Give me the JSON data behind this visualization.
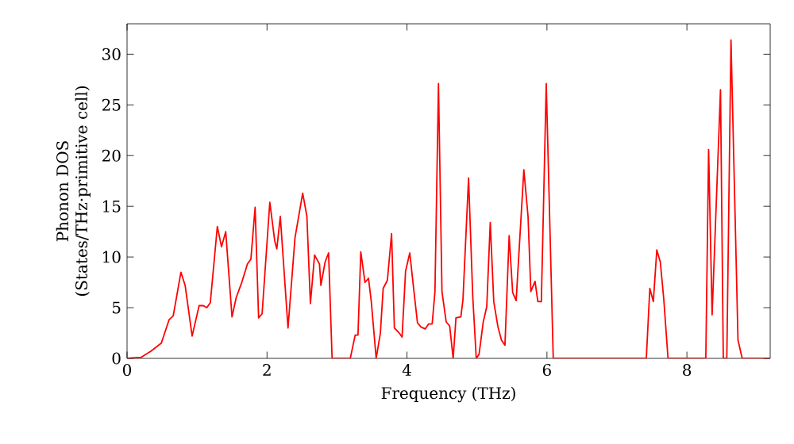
{
  "chart_data": {
    "type": "line",
    "xlabel": "Frequency (THz)",
    "ylabel": "Phonon DOS (States/THz·primitive cell)",
    "xlim": [
      0,
      9.19
    ],
    "ylim": [
      0,
      33
    ],
    "xticks": [
      0,
      2,
      4,
      6,
      8
    ],
    "yticks": [
      0,
      5,
      10,
      15,
      20,
      25,
      30
    ],
    "grid": false,
    "marker": "none",
    "line_style": "solid",
    "series": [
      {
        "color": "#ff0000",
        "x": [
          0,
          0.2,
          0.34,
          0.49,
          0.6,
          0.66,
          0.77,
          0.83,
          0.93,
          1.03,
          1.09,
          1.14,
          1.19,
          1.29,
          1.35,
          1.41,
          1.5,
          1.56,
          1.64,
          1.72,
          1.77,
          1.83,
          1.88,
          1.93,
          2.04,
          2.11,
          2.14,
          2.19,
          2.3,
          2.4,
          2.51,
          2.57,
          2.62,
          2.68,
          2.75,
          2.77,
          2.83,
          2.88,
          2.93,
          3.19,
          3.26,
          3.3,
          3.34,
          3.4,
          3.45,
          3.49,
          3.56,
          3.62,
          3.66,
          3.72,
          3.78,
          3.82,
          3.89,
          3.93,
          3.98,
          4.04,
          4.09,
          4.15,
          4.2,
          4.26,
          4.31,
          4.36,
          4.4,
          4.45,
          4.5,
          4.56,
          4.61,
          4.66,
          4.7,
          4.77,
          4.8,
          4.88,
          4.94,
          4.99,
          5.03,
          5.09,
          5.14,
          5.19,
          5.24,
          5.3,
          5.35,
          5.4,
          5.46,
          5.51,
          5.56,
          5.67,
          5.73,
          5.77,
          5.83,
          5.87,
          5.92,
          5.99,
          6.09,
          7.42,
          7.47,
          7.52,
          7.57,
          7.62,
          7.67,
          7.73,
          8.27,
          8.31,
          8.36,
          8.48,
          8.52,
          8.57,
          8.63,
          8.73,
          8.79,
          9.19
        ],
        "values": [
          0,
          0.1,
          0.7,
          1.5,
          3.8,
          4.2,
          8.5,
          7.2,
          2.2,
          5.2,
          5.2,
          5.0,
          5.5,
          13.0,
          11.0,
          12.5,
          4.1,
          6.0,
          7.5,
          9.3,
          9.8,
          14.9,
          4.0,
          4.4,
          15.4,
          11.6,
          10.8,
          14.0,
          3.0,
          11.9,
          16.3,
          14.0,
          5.4,
          10.2,
          9.3,
          7.2,
          9.5,
          10.4,
          0,
          0,
          2.3,
          2.3,
          10.5,
          7.5,
          7.9,
          5.6,
          0,
          2.5,
          6.9,
          7.7,
          12.3,
          3.0,
          2.5,
          2.1,
          8.6,
          10.4,
          7.2,
          3.5,
          3.1,
          2.9,
          3.4,
          3.4,
          6.6,
          27.1,
          6.6,
          3.6,
          3.2,
          0,
          4.0,
          4.1,
          5.8,
          17.8,
          6.1,
          0,
          0.4,
          3.6,
          5.1,
          13.4,
          5.6,
          3.1,
          1.8,
          1.3,
          12.1,
          6.5,
          5.7,
          18.6,
          14.0,
          6.6,
          7.6,
          5.6,
          5.6,
          27.1,
          0,
          0,
          6.9,
          5.6,
          10.7,
          9.5,
          5.8,
          0,
          0,
          20.6,
          4.3,
          26.5,
          0,
          0,
          31.4,
          1.8,
          0,
          0
        ]
      }
    ]
  }
}
